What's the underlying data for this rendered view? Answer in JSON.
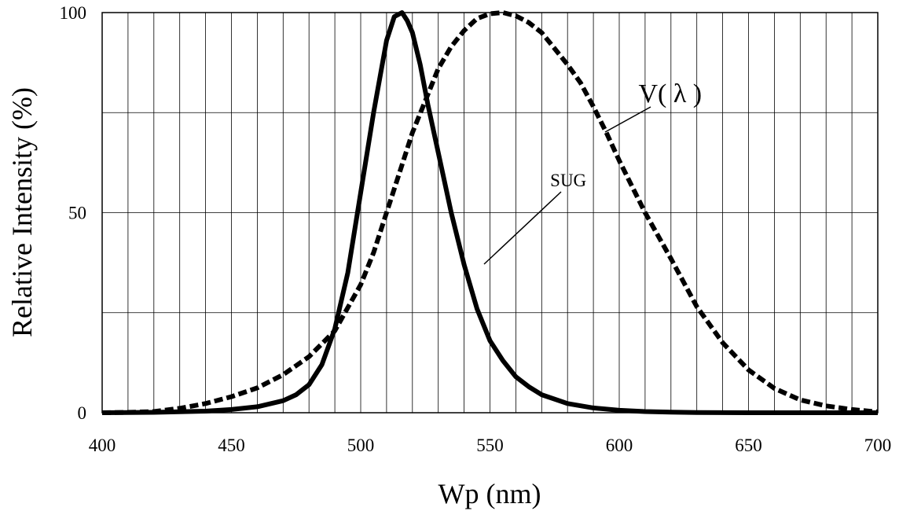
{
  "chart_data": {
    "type": "line",
    "title": "",
    "xlabel": "Wp (nm)",
    "ylabel": "Relative Intensity (%)",
    "xlim": [
      400,
      700
    ],
    "ylim": [
      0,
      100
    ],
    "x_ticks": [
      400,
      450,
      500,
      550,
      600,
      650,
      700
    ],
    "x_tick_labels": [
      "400",
      "450",
      "500",
      "550",
      "600",
      "650",
      "700"
    ],
    "y_ticks": [
      0,
      50,
      100
    ],
    "y_tick_labels": [
      "0",
      "50",
      "100"
    ],
    "x_minor_step": 10,
    "y_minor_step": 25,
    "grid": true,
    "legend": "none",
    "series": [
      {
        "name": "SUG",
        "style": "solid",
        "color": "#000000",
        "x": [
          400,
          420,
          440,
          450,
          460,
          470,
          475,
          480,
          485,
          490,
          495,
          500,
          505,
          510,
          513,
          516,
          518,
          520,
          523,
          526,
          530,
          535,
          540,
          545,
          550,
          555,
          560,
          565,
          570,
          580,
          590,
          600,
          610,
          620,
          630,
          650,
          700
        ],
        "y": [
          0,
          0.1,
          0.4,
          0.8,
          1.5,
          3,
          4.5,
          7,
          12,
          21,
          35,
          55,
          75,
          93,
          99,
          100,
          98,
          95,
          87,
          77,
          65,
          50,
          37,
          26,
          18,
          13,
          9,
          6.5,
          4.5,
          2.3,
          1.2,
          0.6,
          0.3,
          0.15,
          0.05,
          0,
          0
        ]
      },
      {
        "name": "V(λ)",
        "style": "dashed",
        "color": "#000000",
        "x": [
          400,
          410,
          420,
          430,
          440,
          450,
          460,
          470,
          480,
          490,
          500,
          505,
          510,
          515,
          520,
          525,
          530,
          535,
          540,
          545,
          550,
          555,
          560,
          565,
          570,
          575,
          580,
          585,
          590,
          595,
          600,
          610,
          620,
          630,
          640,
          650,
          660,
          670,
          680,
          690,
          700
        ],
        "y": [
          0,
          0.1,
          0.3,
          1.1,
          2.3,
          4,
          6.2,
          9.5,
          14,
          20.5,
          32,
          40,
          50,
          60,
          70,
          78,
          86,
          91.5,
          95.5,
          98.5,
          99.7,
          100,
          99.2,
          97.5,
          95,
          91,
          87,
          82.5,
          76.5,
          70,
          63,
          50,
          38.5,
          26.5,
          17.5,
          10.7,
          6.1,
          3.2,
          1.7,
          0.8,
          0.2
        ]
      }
    ],
    "annotations": [
      {
        "text": "V( λ )",
        "x": 605,
        "y": 77
      },
      {
        "text": "SUG",
        "x": 573,
        "y": 57
      }
    ]
  }
}
